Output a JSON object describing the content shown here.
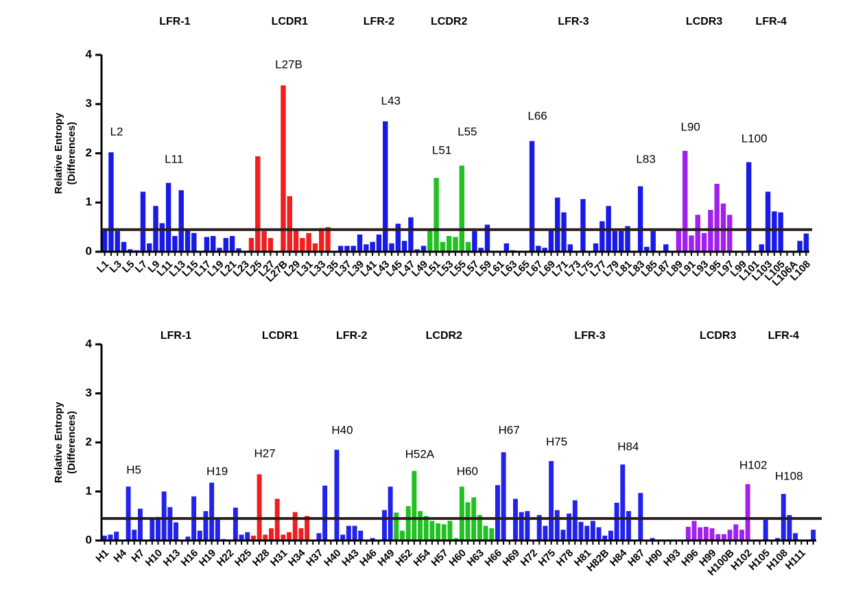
{
  "chart_data": [
    {
      "type": "bar",
      "ylabel": [
        "Relative Entropy",
        "(Differences)"
      ],
      "categories": [
        "L1",
        null,
        "L3",
        null,
        "L5",
        null,
        "L7",
        null,
        "L9",
        null,
        "L11",
        null,
        "L13",
        null,
        "L15",
        null,
        "L17",
        null,
        "L19",
        null,
        "L21",
        null,
        "L23",
        null,
        "L25",
        null,
        "L27",
        null,
        "L27B",
        null,
        "L29",
        null,
        "L31",
        null,
        "L33",
        null,
        "L35",
        null,
        "L37",
        null,
        "L39",
        null,
        "L41",
        null,
        "L43",
        null,
        "L45",
        null,
        "L47",
        null,
        "L49",
        null,
        "L51",
        null,
        "L53",
        null,
        "L55",
        null,
        "L57",
        null,
        "L59",
        null,
        "L61",
        null,
        "L63",
        null,
        "L65",
        null,
        "L67",
        null,
        "L69",
        null,
        "L71",
        null,
        "L73",
        null,
        "L75",
        null,
        "L77",
        null,
        "L79",
        null,
        "L81",
        null,
        "L83",
        null,
        "L85",
        null,
        "L87",
        null,
        "L89",
        null,
        "L91",
        null,
        "L93",
        null,
        "L95",
        null,
        "L97",
        null,
        "L99",
        null,
        "L101",
        null,
        "L103",
        null,
        "L105",
        null,
        "L106A",
        null,
        "L108"
      ],
      "values": [
        0.45,
        2.02,
        0.42,
        0.2,
        0.05,
        0.03,
        1.22,
        0.17,
        0.93,
        0.58,
        1.4,
        0.32,
        1.25,
        0.43,
        0.38,
        0,
        0.3,
        0.32,
        0.08,
        0.28,
        0.32,
        0.07,
        0,
        0.28,
        1.94,
        0.42,
        0.28,
        0,
        3.38,
        1.13,
        0.45,
        0.28,
        0.38,
        0.17,
        0.48,
        0.5,
        0,
        0.12,
        0.12,
        0.12,
        0.35,
        0.15,
        0.2,
        0.35,
        2.65,
        0.17,
        0.57,
        0.22,
        0.7,
        0.05,
        0.12,
        0.45,
        1.5,
        0.2,
        0.32,
        0.3,
        1.75,
        0.2,
        0.42,
        0.08,
        0.55,
        0,
        0,
        0.17,
        0.03,
        0,
        0,
        2.25,
        0.12,
        0.08,
        0.45,
        1.1,
        0.8,
        0.15,
        0,
        1.07,
        0,
        0.17,
        0.62,
        0.93,
        0.42,
        0.42,
        0.52,
        0,
        1.33,
        0.1,
        0.42,
        0,
        0.15,
        0,
        0.45,
        2.05,
        0.33,
        0.75,
        0.38,
        0.85,
        1.38,
        0.98,
        0.75,
        0,
        0,
        1.82,
        0,
        0.15,
        1.22,
        0.82,
        0.8,
        0,
        0,
        0.22,
        0.37
      ],
      "colors": [
        "#1a1ae6",
        "#1a1ae6",
        "#1a1ae6",
        "#1a1ae6",
        "#1a1ae6",
        "#1a1ae6",
        "#1a1ae6",
        "#1a1ae6",
        "#1a1ae6",
        "#1a1ae6",
        "#1a1ae6",
        "#1a1ae6",
        "#1a1ae6",
        "#1a1ae6",
        "#1a1ae6",
        "#1a1ae6",
        "#1a1ae6",
        "#1a1ae6",
        "#1a1ae6",
        "#1a1ae6",
        "#1a1ae6",
        "#1a1ae6",
        "#1a1ae6",
        "#f01e1e",
        "#f01e1e",
        "#f01e1e",
        "#f01e1e",
        "#f01e1e",
        "#f01e1e",
        "#f01e1e",
        "#f01e1e",
        "#f01e1e",
        "#f01e1e",
        "#f01e1e",
        "#f01e1e",
        "#f01e1e",
        "#1a1ae6",
        "#1a1ae6",
        "#1a1ae6",
        "#1a1ae6",
        "#1a1ae6",
        "#1a1ae6",
        "#1a1ae6",
        "#1a1ae6",
        "#1a1ae6",
        "#1a1ae6",
        "#1a1ae6",
        "#1a1ae6",
        "#1a1ae6",
        "#1a1ae6",
        "#1a1ae6",
        "#22c022",
        "#22c022",
        "#22c022",
        "#22c022",
        "#22c022",
        "#22c022",
        "#22c022",
        "#1a1ae6",
        "#1a1ae6",
        "#1a1ae6",
        "#1a1ae6",
        "#1a1ae6",
        "#1a1ae6",
        "#1a1ae6",
        "#1a1ae6",
        "#1a1ae6",
        "#1a1ae6",
        "#1a1ae6",
        "#1a1ae6",
        "#1a1ae6",
        "#1a1ae6",
        "#1a1ae6",
        "#1a1ae6",
        "#1a1ae6",
        "#1a1ae6",
        "#1a1ae6",
        "#1a1ae6",
        "#1a1ae6",
        "#1a1ae6",
        "#1a1ae6",
        "#1a1ae6",
        "#1a1ae6",
        "#1a1ae6",
        "#1a1ae6",
        "#1a1ae6",
        "#1a1ae6",
        "#1a1ae6",
        "#1a1ae6",
        "#1a1ae6",
        "#a020f0",
        "#a020f0",
        "#a020f0",
        "#a020f0",
        "#a020f0",
        "#a020f0",
        "#a020f0",
        "#a020f0",
        "#a020f0",
        "#1a1ae6",
        "#1a1ae6",
        "#1a1ae6",
        "#1a1ae6",
        "#1a1ae6",
        "#1a1ae6",
        "#1a1ae6",
        "#1a1ae6",
        "#1a1ae6",
        "#1a1ae6",
        "#1a1ae6",
        "#1a1ae6"
      ],
      "ylim": [
        0,
        4
      ],
      "yticks": [
        0,
        1,
        2,
        3,
        4
      ],
      "reference_line": 0.45,
      "regions": [
        {
          "label": "LFR-1",
          "color": "#2b2bd6"
        },
        {
          "label": "LCDR1",
          "color": "#e84040"
        },
        {
          "label": "LFR-2",
          "color": "#2b2bd6"
        },
        {
          "label": "LCDR2",
          "color": "#22b822"
        },
        {
          "label": "LFR-3",
          "color": "#2b2bd6"
        },
        {
          "label": "LCDR3",
          "color": "#a633e6"
        },
        {
          "label": "LFR-4",
          "color": "#2b2bd6"
        }
      ],
      "annotations": [
        "L2",
        "L11",
        "L27B",
        "L43",
        "L51",
        "L55",
        "L66",
        "L83",
        "L90",
        "L100"
      ]
    },
    {
      "type": "bar",
      "ylabel": [
        "Relative Entropy",
        "(Differences)"
      ],
      "categories": [
        "H1",
        null,
        null,
        "H4",
        null,
        null,
        "H7",
        null,
        null,
        "H10",
        null,
        null,
        "H13",
        null,
        null,
        "H16",
        null,
        null,
        "H19",
        null,
        null,
        "H22",
        null,
        null,
        "H25",
        null,
        null,
        "H28",
        null,
        null,
        "H31",
        null,
        null,
        "H34",
        null,
        null,
        "H37",
        null,
        null,
        "H40",
        null,
        null,
        "H43",
        null,
        null,
        "H46",
        null,
        null,
        "H49",
        null,
        null,
        "H52",
        null,
        null,
        "H54",
        null,
        null,
        "H57",
        null,
        null,
        "H60",
        null,
        null,
        "H63",
        null,
        null,
        "H66",
        null,
        null,
        "H69",
        null,
        null,
        "H72",
        null,
        null,
        "H75",
        null,
        null,
        "H78",
        null,
        null,
        "H81",
        null,
        null,
        "H82B",
        null,
        null,
        "H84",
        null,
        null,
        "H87",
        null,
        null,
        "H90",
        null,
        null,
        "H93",
        null,
        null,
        "H96",
        null,
        null,
        "H99",
        null,
        null,
        "H100B",
        null,
        null,
        "H102",
        null,
        null,
        "H105",
        null,
        null,
        "H108",
        null,
        null,
        "H111",
        null,
        null
      ],
      "values": [
        0.1,
        0.12,
        0.18,
        0,
        1.1,
        0.22,
        0.65,
        0,
        0.45,
        0.48,
        1.0,
        0.68,
        0.37,
        0,
        0.08,
        0.9,
        0.2,
        0.6,
        1.18,
        0.45,
        0.03,
        0,
        0.67,
        0.12,
        0.17,
        0.1,
        1.35,
        0.12,
        0.25,
        0.85,
        0.12,
        0.17,
        0.58,
        0.25,
        0.5,
        0,
        0.15,
        1.12,
        0,
        1.85,
        0.12,
        0.3,
        0.3,
        0.2,
        0,
        0.05,
        0,
        0.62,
        1.1,
        0.57,
        0.2,
        0.7,
        1.42,
        0.6,
        0.5,
        0.4,
        0.35,
        0.33,
        0.4,
        0.05,
        1.1,
        0.78,
        0.88,
        0.52,
        0.3,
        0.25,
        1.13,
        1.8,
        0,
        0.85,
        0.58,
        0.6,
        0,
        0.52,
        0.3,
        1.62,
        0.62,
        0.22,
        0.55,
        0.82,
        0.38,
        0.3,
        0.4,
        0.27,
        0.1,
        0.2,
        0.77,
        1.55,
        0.6,
        0,
        0.97,
        0,
        0.05,
        0,
        0,
        0,
        0,
        0,
        0.28,
        0.4,
        0.27,
        0.28,
        0.25,
        0.13,
        0.13,
        0.22,
        0.33,
        0.22,
        1.15,
        0,
        0,
        0.42,
        0,
        0.05,
        0.95,
        0.52,
        0.15,
        0,
        0,
        0.22
      ],
      "colors": [
        "#2222ea",
        "#2222ea",
        "#2222ea",
        "#2222ea",
        "#2222ea",
        "#2222ea",
        "#2222ea",
        "#2222ea",
        "#2222ea",
        "#2222ea",
        "#2222ea",
        "#2222ea",
        "#2222ea",
        "#2222ea",
        "#2222ea",
        "#2222ea",
        "#2222ea",
        "#2222ea",
        "#2222ea",
        "#2222ea",
        "#2222ea",
        "#2222ea",
        "#2222ea",
        "#2222ea",
        "#2222ea",
        "#f01e1e",
        "#f01e1e",
        "#f01e1e",
        "#f01e1e",
        "#f01e1e",
        "#f01e1e",
        "#f01e1e",
        "#f01e1e",
        "#f01e1e",
        "#f01e1e",
        "#2222ea",
        "#2222ea",
        "#2222ea",
        "#2222ea",
        "#2222ea",
        "#2222ea",
        "#2222ea",
        "#2222ea",
        "#2222ea",
        "#2222ea",
        "#2222ea",
        "#2222ea",
        "#2222ea",
        "#2222ea",
        "#22c022",
        "#22c022",
        "#22c022",
        "#22c022",
        "#22c022",
        "#22c022",
        "#22c022",
        "#22c022",
        "#22c022",
        "#22c022",
        "#22c022",
        "#22c022",
        "#22c022",
        "#22c022",
        "#22c022",
        "#22c022",
        "#22c022",
        "#2222ea",
        "#2222ea",
        "#2222ea",
        "#2222ea",
        "#2222ea",
        "#2222ea",
        "#2222ea",
        "#2222ea",
        "#2222ea",
        "#2222ea",
        "#2222ea",
        "#2222ea",
        "#2222ea",
        "#2222ea",
        "#2222ea",
        "#2222ea",
        "#2222ea",
        "#2222ea",
        "#2222ea",
        "#2222ea",
        "#2222ea",
        "#2222ea",
        "#2222ea",
        "#2222ea",
        "#2222ea",
        "#2222ea",
        "#2222ea",
        "#2222ea",
        "#2222ea",
        "#2222ea",
        "#2222ea",
        "#2222ea",
        "#a020f0",
        "#a020f0",
        "#a020f0",
        "#a020f0",
        "#a020f0",
        "#a020f0",
        "#a020f0",
        "#a020f0",
        "#a020f0",
        "#a020f0",
        "#a020f0",
        "#2222ea",
        "#2222ea",
        "#2222ea",
        "#2222ea",
        "#2222ea",
        "#2222ea",
        "#2222ea",
        "#2222ea",
        "#2222ea",
        "#2222ea",
        "#2222ea"
      ],
      "ylim": [
        0,
        4
      ],
      "yticks": [
        0,
        1,
        2,
        3,
        4
      ],
      "reference_line": 0.45,
      "regions": [
        {
          "label": "LFR-1",
          "color": "#5050e0"
        },
        {
          "label": "LCDR1",
          "color": "#e83a3a"
        },
        {
          "label": "LFR-2",
          "color": "#5050e0"
        },
        {
          "label": "LCDR2",
          "color": "#22b822"
        },
        {
          "label": "LFR-3",
          "color": "#5050e0"
        },
        {
          "label": "LCDR3",
          "color": "#a633e6"
        },
        {
          "label": "LFR-4",
          "color": "#5050e0"
        }
      ],
      "annotations": [
        "H5",
        "H19",
        "H27",
        "H40",
        "H52A",
        "H60",
        "H67",
        "H75",
        "H84",
        "H102",
        "H108"
      ]
    }
  ]
}
